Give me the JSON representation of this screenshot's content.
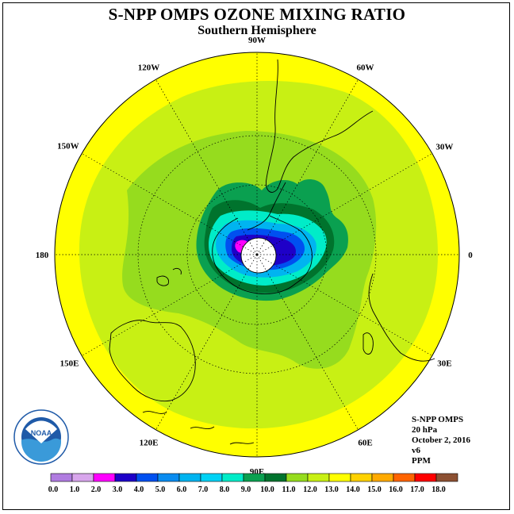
{
  "title": "S-NPP OMPS OZONE MIXING RATIO",
  "subtitle": "Southern Hemisphere",
  "longitude_labels": [
    "90W",
    "60W",
    "30W",
    "0",
    "30E",
    "60E",
    "90E",
    "120E",
    "150E",
    "180",
    "150W",
    "120W"
  ],
  "info": {
    "instrument": "S-NPP OMPS",
    "level": "20 hPa",
    "date": "October 2, 2016",
    "version": "v6",
    "units": "PPM"
  },
  "logo_text": "NOAA",
  "colorbar": {
    "ticks": [
      "0.0",
      "1.0",
      "2.0",
      "3.0",
      "4.0",
      "5.0",
      "6.0",
      "7.0",
      "8.0",
      "9.0",
      "10.0",
      "11.0",
      "12.0",
      "13.0",
      "14.0",
      "15.0",
      "16.0",
      "17.0",
      "18.0"
    ],
    "colors": [
      "#b07ce0",
      "#d8a6ec",
      "#ff00ff",
      "#1e00c8",
      "#0050f0",
      "#0a8cf0",
      "#00b4f0",
      "#00d2f5",
      "#00ecc8",
      "#0aa050",
      "#00732d",
      "#96dc1e",
      "#c8f014",
      "#ffff00",
      "#ffd200",
      "#ffaa00",
      "#ff6400",
      "#ff0000",
      "#8c5032"
    ]
  },
  "colors": {
    "outer_yellow": "#ffff00",
    "light_green": "#c8f014",
    "mid_green": "#96dc1e",
    "dark_green": "#0aa050",
    "darkest_green": "#00732d",
    "cyan": "#00ecc8",
    "light_blue": "#00b4f0",
    "blue": "#0050f0",
    "deep_blue": "#1e00c8",
    "magenta": "#ff00ff"
  }
}
